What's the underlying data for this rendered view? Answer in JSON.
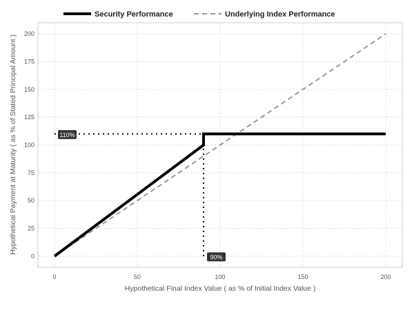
{
  "chart_data": {
    "type": "line",
    "title": "",
    "xlabel": "Hypothetical Final Index Value ( as % of Initial Index Value )",
    "ylabel": "Hypothetical Payment at Maturity ( as % of Stated Principal Amount )",
    "xlim": [
      -10,
      210
    ],
    "ylim": [
      -10,
      210
    ],
    "x_ticks": [
      0,
      50,
      100,
      150,
      200
    ],
    "y_ticks": [
      0,
      25,
      50,
      75,
      100,
      125,
      150,
      175,
      200
    ],
    "grid": true,
    "legend_position": "top",
    "series": [
      {
        "name": "Security Performance",
        "style": "solid",
        "color": "#000000",
        "x": [
          0,
          90,
          90,
          200
        ],
        "y": [
          0,
          100,
          110,
          110
        ]
      },
      {
        "name": "Underlying Index Performance",
        "style": "dashed",
        "color": "#999999",
        "x": [
          0,
          200
        ],
        "y": [
          0,
          200
        ]
      }
    ],
    "reference_lines": [
      {
        "label": "110%",
        "x": [
          0,
          90
        ],
        "y": [
          110,
          110
        ]
      },
      {
        "label": "90%",
        "x": [
          90,
          90
        ],
        "y": [
          0,
          110
        ]
      }
    ]
  }
}
